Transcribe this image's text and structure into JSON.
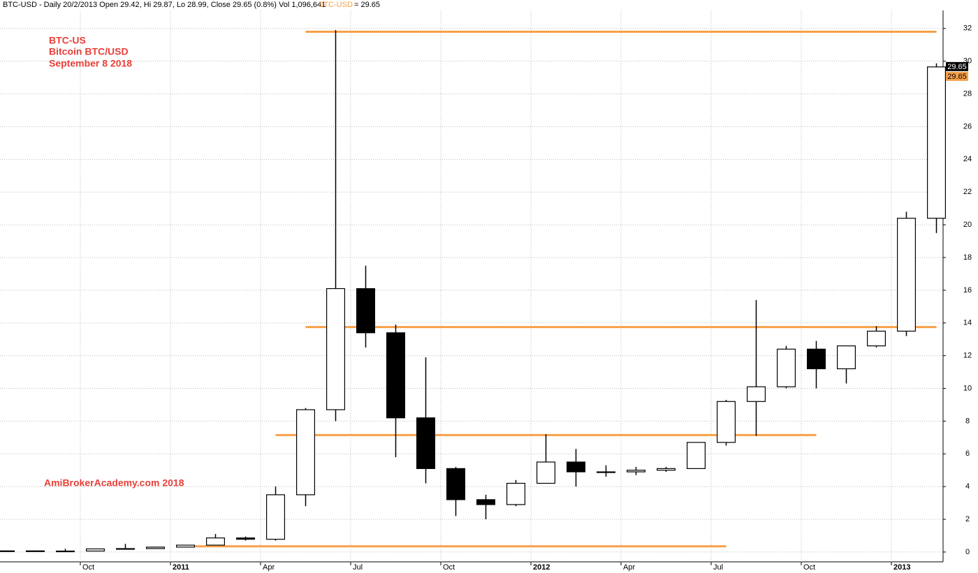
{
  "chart_data": {
    "type": "candlestick",
    "header": {
      "text": "BTC-USD - Daily 20/2/2013 Open 29.42, Hi 29.87, Lo 28.99, Close 29.65 (0.8%) Vol 1,096,641",
      "symbol": "BTC-USD",
      "last": "= 29.65"
    },
    "annotations": [
      "BTC-US",
      "Bitcoin BTC/USD",
      "September 8 2018",
      "AmiBrokerAcademy.com  2018"
    ],
    "price_tags": [
      {
        "label": "29.65",
        "color": "#000000"
      },
      {
        "label": "29.65",
        "color": "#f7a048"
      }
    ],
    "color": "#000000",
    "x": [
      "2010-07",
      "2010-08",
      "2010-09",
      "2010-10",
      "2010-11",
      "2010-12",
      "2011-01",
      "2011-02",
      "2011-03",
      "2011-04",
      "2011-05",
      "2011-06",
      "2011-07",
      "2011-08",
      "2011-09",
      "2011-10",
      "2011-11",
      "2011-12",
      "2012-01",
      "2012-02",
      "2012-03",
      "2012-04",
      "2012-05",
      "2012-06",
      "2012-07",
      "2012-08",
      "2012-09",
      "2012-10",
      "2012-11",
      "2012-12",
      "2013-01",
      "2013-02"
    ],
    "open": [
      0.05,
      0.07,
      0.06,
      0.06,
      0.19,
      0.21,
      0.3,
      0.42,
      0.86,
      0.78,
      3.5,
      8.7,
      16.1,
      13.4,
      8.2,
      5.1,
      3.2,
      2.9,
      4.2,
      5.5,
      4.9,
      4.9,
      5.0,
      5.1,
      6.7,
      9.2,
      10.1,
      12.4,
      11.2,
      12.6,
      13.5,
      20.4
    ],
    "high": [
      0.1,
      0.07,
      0.2,
      0.2,
      0.5,
      0.3,
      0.44,
      1.1,
      0.95,
      4.0,
      8.8,
      31.9,
      17.5,
      13.9,
      11.9,
      5.2,
      3.5,
      4.4,
      7.2,
      6.3,
      5.3,
      5.2,
      5.2,
      6.7,
      9.3,
      15.4,
      12.6,
      12.9,
      12.6,
      13.8,
      20.8,
      29.87
    ],
    "low": [
      0.05,
      0.06,
      0.06,
      0.06,
      0.19,
      0.2,
      0.3,
      0.42,
      0.7,
      0.7,
      2.8,
      8.0,
      12.5,
      5.8,
      4.2,
      2.2,
      2.0,
      2.8,
      4.2,
      4.0,
      4.6,
      4.7,
      4.9,
      5.1,
      6.5,
      7.1,
      10.0,
      10.0,
      10.3,
      12.5,
      13.2,
      19.5
    ],
    "close": [
      0.07,
      0.06,
      0.06,
      0.19,
      0.21,
      0.3,
      0.42,
      0.86,
      0.78,
      3.5,
      8.7,
      16.1,
      13.4,
      8.2,
      5.1,
      3.2,
      2.9,
      4.2,
      5.5,
      4.9,
      4.9,
      5.0,
      5.1,
      6.7,
      9.2,
      10.1,
      12.4,
      11.2,
      12.6,
      13.5,
      20.4,
      29.65
    ],
    "levels": [
      {
        "value": 31.8,
        "from": "2011-05",
        "to": "2013-02",
        "color": "#f7a048"
      },
      {
        "value": 13.75,
        "from": "2011-05",
        "to": "2013-02",
        "color": "#f7a048"
      },
      {
        "value": 7.15,
        "from": "2011-04",
        "to": "2012-10",
        "color": "#f7a048"
      },
      {
        "value": 0.35,
        "from": "2011-01",
        "to": "2012-07",
        "color": "#f7a048"
      }
    ],
    "xlim": [
      "2010-07",
      "2013-03"
    ],
    "xticks": [
      {
        "value": "2010-10",
        "label": "Oct"
      },
      {
        "value": "2011-01",
        "label": "2011"
      },
      {
        "value": "2011-04",
        "label": "Apr"
      },
      {
        "value": "2011-07",
        "label": "Jul"
      },
      {
        "value": "2011-10",
        "label": "Oct"
      },
      {
        "value": "2012-01",
        "label": "2012"
      },
      {
        "value": "2012-04",
        "label": "Apr"
      },
      {
        "value": "2012-07",
        "label": "Jul"
      },
      {
        "value": "2012-10",
        "label": "Oct"
      },
      {
        "value": "2013-01",
        "label": "2013"
      }
    ],
    "ylim": [
      -0.6,
      33.1
    ],
    "yticks": [
      0,
      2,
      4,
      6,
      8,
      10,
      12,
      14,
      16,
      18,
      20,
      22,
      24,
      26,
      28,
      30,
      32
    ],
    "grid": true
  }
}
